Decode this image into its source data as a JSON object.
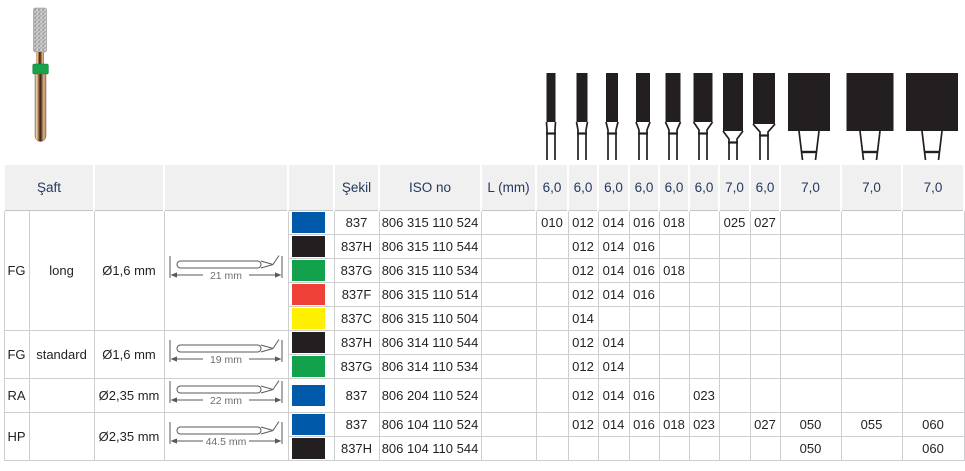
{
  "photo": {
    "band_color": "#17a24c",
    "head_color": "#c9c9c9"
  },
  "pictograms": {
    "head_color": "#231f20",
    "items": [
      {
        "head_w": 9,
        "head_h": 49
      },
      {
        "head_w": 11,
        "head_h": 49
      },
      {
        "head_w": 12,
        "head_h": 49
      },
      {
        "head_w": 14,
        "head_h": 49
      },
      {
        "head_w": 15,
        "head_h": 49
      },
      {
        "head_w": 19,
        "head_h": 49
      },
      {
        "head_w": 20,
        "head_h": 58
      },
      {
        "head_w": 22,
        "head_h": 51
      },
      {
        "head_w": 42,
        "head_h": 58
      },
      {
        "head_w": 47,
        "head_h": 58
      },
      {
        "head_w": 52,
        "head_h": 58
      }
    ]
  },
  "table": {
    "header": {
      "saft": "Şaft",
      "sekil": "Şekil",
      "iso_no": "ISO no",
      "l_mm": "L (mm)",
      "sizes": [
        "6,0",
        "6,0",
        "6,0",
        "6,0",
        "6,0",
        "6,0",
        "7,0",
        "6,0",
        "7,0",
        "7,0",
        "7,0"
      ]
    },
    "groups": [
      {
        "shank": "FG",
        "type": "long",
        "diameter": "Ø1,6 mm",
        "shank_length": "21 mm",
        "row_count": 5
      },
      {
        "shank": "FG",
        "type": "standard",
        "diameter": "Ø1,6 mm",
        "shank_length": "19 mm",
        "row_count": 2
      },
      {
        "shank": "RA",
        "type": "",
        "diameter": "Ø2,35 mm",
        "shank_length": "22 mm",
        "row_count": 1
      },
      {
        "shank": "HP",
        "type": "",
        "diameter": "Ø2,35 mm",
        "shank_length": "44.5 mm",
        "row_count": 2
      }
    ],
    "rows": [
      {
        "color": "#005aa9",
        "color_name": "blue",
        "sekil": "837",
        "iso": "806 315 110 524",
        "sizes": [
          "010",
          "012",
          "014",
          "016",
          "018",
          "",
          "025",
          "027",
          "",
          "",
          ""
        ]
      },
      {
        "color": "#231f20",
        "color_name": "black",
        "sekil": "837H",
        "iso": "806 315 110 544",
        "sizes": [
          "",
          "012",
          "014",
          "016",
          "",
          "",
          "",
          "",
          "",
          "",
          ""
        ]
      },
      {
        "color": "#12a24b",
        "color_name": "green",
        "sekil": "837G",
        "iso": "806 315 110 534",
        "sizes": [
          "",
          "012",
          "014",
          "016",
          "018",
          "",
          "",
          "",
          "",
          "",
          ""
        ]
      },
      {
        "color": "#ee4036",
        "color_name": "red",
        "sekil": "837F",
        "iso": "806 315 110 514",
        "sizes": [
          "",
          "012",
          "014",
          "016",
          "",
          "",
          "",
          "",
          "",
          "",
          ""
        ]
      },
      {
        "color": "#ffef00",
        "color_name": "yellow",
        "sekil": "837C",
        "iso": "806 315 110 504",
        "sizes": [
          "",
          "014",
          "",
          "",
          "",
          "",
          "",
          "",
          "",
          "",
          ""
        ]
      },
      {
        "color": "#231f20",
        "color_name": "black",
        "sekil": "837H",
        "iso": "806 314 110 544",
        "sizes": [
          "",
          "012",
          "014",
          "",
          "",
          "",
          "",
          "",
          "",
          "",
          ""
        ]
      },
      {
        "color": "#12a24b",
        "color_name": "green",
        "sekil": "837G",
        "iso": "806 314 110 534",
        "sizes": [
          "",
          "012",
          "014",
          "",
          "",
          "",
          "",
          "",
          "",
          "",
          ""
        ]
      },
      {
        "color": "#005aa9",
        "color_name": "blue",
        "sekil": "837",
        "iso": "806 204 110 524",
        "sizes": [
          "",
          "012",
          "014",
          "016",
          "",
          "023",
          "",
          "",
          "",
          "",
          ""
        ]
      },
      {
        "color": "#005aa9",
        "color_name": "blue",
        "sekil": "837",
        "iso": "806 104 110 524",
        "sizes": [
          "",
          "012",
          "014",
          "016",
          "018",
          "023",
          "",
          "027",
          "050",
          "055",
          "060"
        ]
      },
      {
        "color": "#231f20",
        "color_name": "black",
        "sekil": "837H",
        "iso": "806 104 110 544",
        "sizes": [
          "",
          "",
          "",
          "",
          "",
          "",
          "",
          "",
          "050",
          "",
          "060"
        ]
      }
    ]
  }
}
